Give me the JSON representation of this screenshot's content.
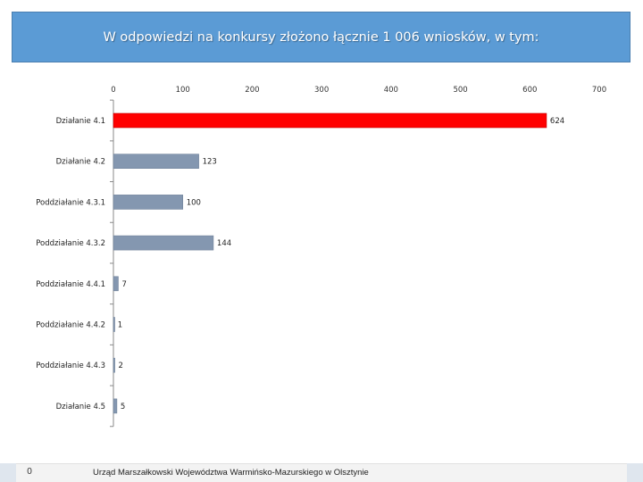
{
  "header": {
    "title": "W odpowiedzi na konkursy złożono łącznie 1 006 wniosków, w tym:"
  },
  "footer": {
    "slide_number": "0",
    "organization": "Urząd Marszałkowski Województwa Warmińsko-Mazurskiego w Olsztynie"
  },
  "colors": {
    "highlight_bar": "#ff0000",
    "default_bar": "#8497b0",
    "title_bg": "#5b9bd5"
  },
  "chart_data": {
    "type": "bar",
    "orientation": "horizontal",
    "categories": [
      "Działanie 4.1",
      "Działanie 4.2",
      "Poddziałanie 4.3.1",
      "Poddziałanie 4.3.2",
      "Poddziałanie 4.4.1",
      "Poddziałanie 4.4.2",
      "Poddziałanie 4.4.3",
      "Działanie 4.5"
    ],
    "values": [
      624,
      123,
      100,
      144,
      7,
      1,
      2,
      5
    ],
    "data_labels": [
      "624",
      "123",
      "100",
      "144",
      "7",
      "1",
      "2",
      "5"
    ],
    "highlighted_category": "Działanie 4.1",
    "xlim": [
      0,
      700
    ],
    "ticks": [
      0,
      100,
      200,
      300,
      400,
      500,
      600,
      700
    ],
    "tick_labels": [
      "0",
      "100",
      "200",
      "300",
      "400",
      "500",
      "600",
      "700"
    ],
    "axis_position": "top",
    "grid": false,
    "legend": "none",
    "xlabel": "",
    "ylabel": ""
  }
}
